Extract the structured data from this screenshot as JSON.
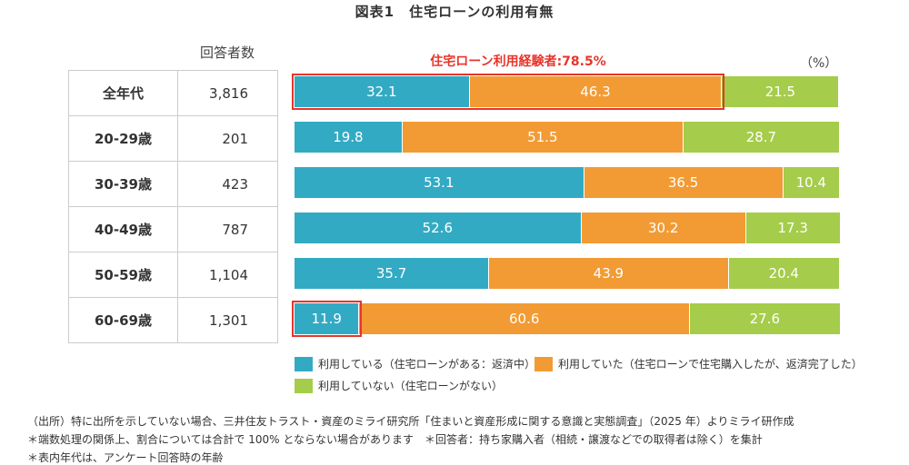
{
  "title": "図表1　住宅ローンの利用有無",
  "count_header": "回答者数",
  "experience_label": "住宅ローン利用経験者:78.5%",
  "unit": "（%）",
  "colors": {
    "repaying": "#33aac3",
    "completed": "#f29b34",
    "not_used": "#a5cc4a",
    "highlight": "#e8352a"
  },
  "chart_data": {
    "type": "bar",
    "orientation": "horizontal",
    "stacked": true,
    "categories": [
      "全年代",
      "20-29歳",
      "30-39歳",
      "40-49歳",
      "50-59歳",
      "60-69歳"
    ],
    "respondents": [
      "3,816",
      "201",
      "423",
      "787",
      "1,104",
      "1,301"
    ],
    "series": [
      {
        "name": "利用している（住宅ローンがある：返済中）",
        "values": [
          32.1,
          19.8,
          53.1,
          52.6,
          35.7,
          11.9
        ]
      },
      {
        "name": "利用していた（住宅ローンで住宅購入したが、返済完了した）",
        "values": [
          46.3,
          51.5,
          36.5,
          30.2,
          43.9,
          60.6
        ]
      },
      {
        "name": "利用していない（住宅ローンがない）",
        "values": [
          21.5,
          28.7,
          10.4,
          17.3,
          20.4,
          27.6
        ]
      }
    ],
    "xlim": [
      0,
      100
    ]
  },
  "notes": [
    "（出所）特に出所を示していない場合、三井住友トラスト・資産のミライ研究所「住まいと資産形成に関する意識と実態調査」（2025 年）よりミライ研作成",
    "＊端数処理の関係上、割合については合計で 100% とならない場合があります　＊回答者：持ち家購入者（相続・譲渡などでの取得者は除く）を集計",
    "＊表内年代は、アンケート回答時の年齢"
  ]
}
